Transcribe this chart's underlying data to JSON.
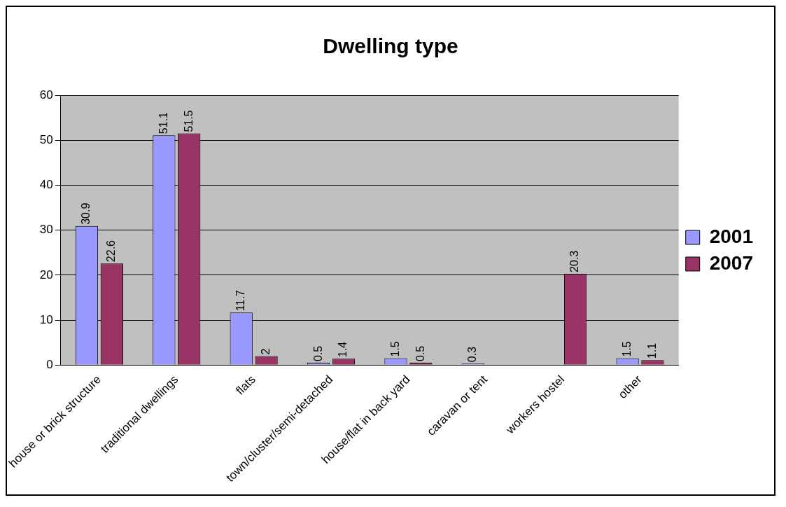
{
  "chart_data": {
    "type": "bar",
    "title": "Dwelling type",
    "categories": [
      "house or brick structure",
      "traditional dwellings",
      "flats",
      "town/cluster/semi-detached",
      "house/flat in back yard",
      "caravan or tent",
      "workers hostel",
      "other"
    ],
    "series": [
      {
        "name": "2001",
        "color": "#9999ff",
        "values": [
          30.9,
          51.1,
          11.7,
          0.5,
          1.5,
          0.3,
          null,
          1.5
        ]
      },
      {
        "name": "2007",
        "color": "#993366",
        "values": [
          22.6,
          51.5,
          2,
          1.4,
          0.5,
          null,
          20.3,
          1.1
        ]
      }
    ],
    "ylim": [
      0,
      60
    ],
    "yticks": [
      0,
      10,
      20,
      30,
      40,
      50,
      60
    ],
    "grid": "y",
    "legend": "right",
    "data_labels": true
  }
}
